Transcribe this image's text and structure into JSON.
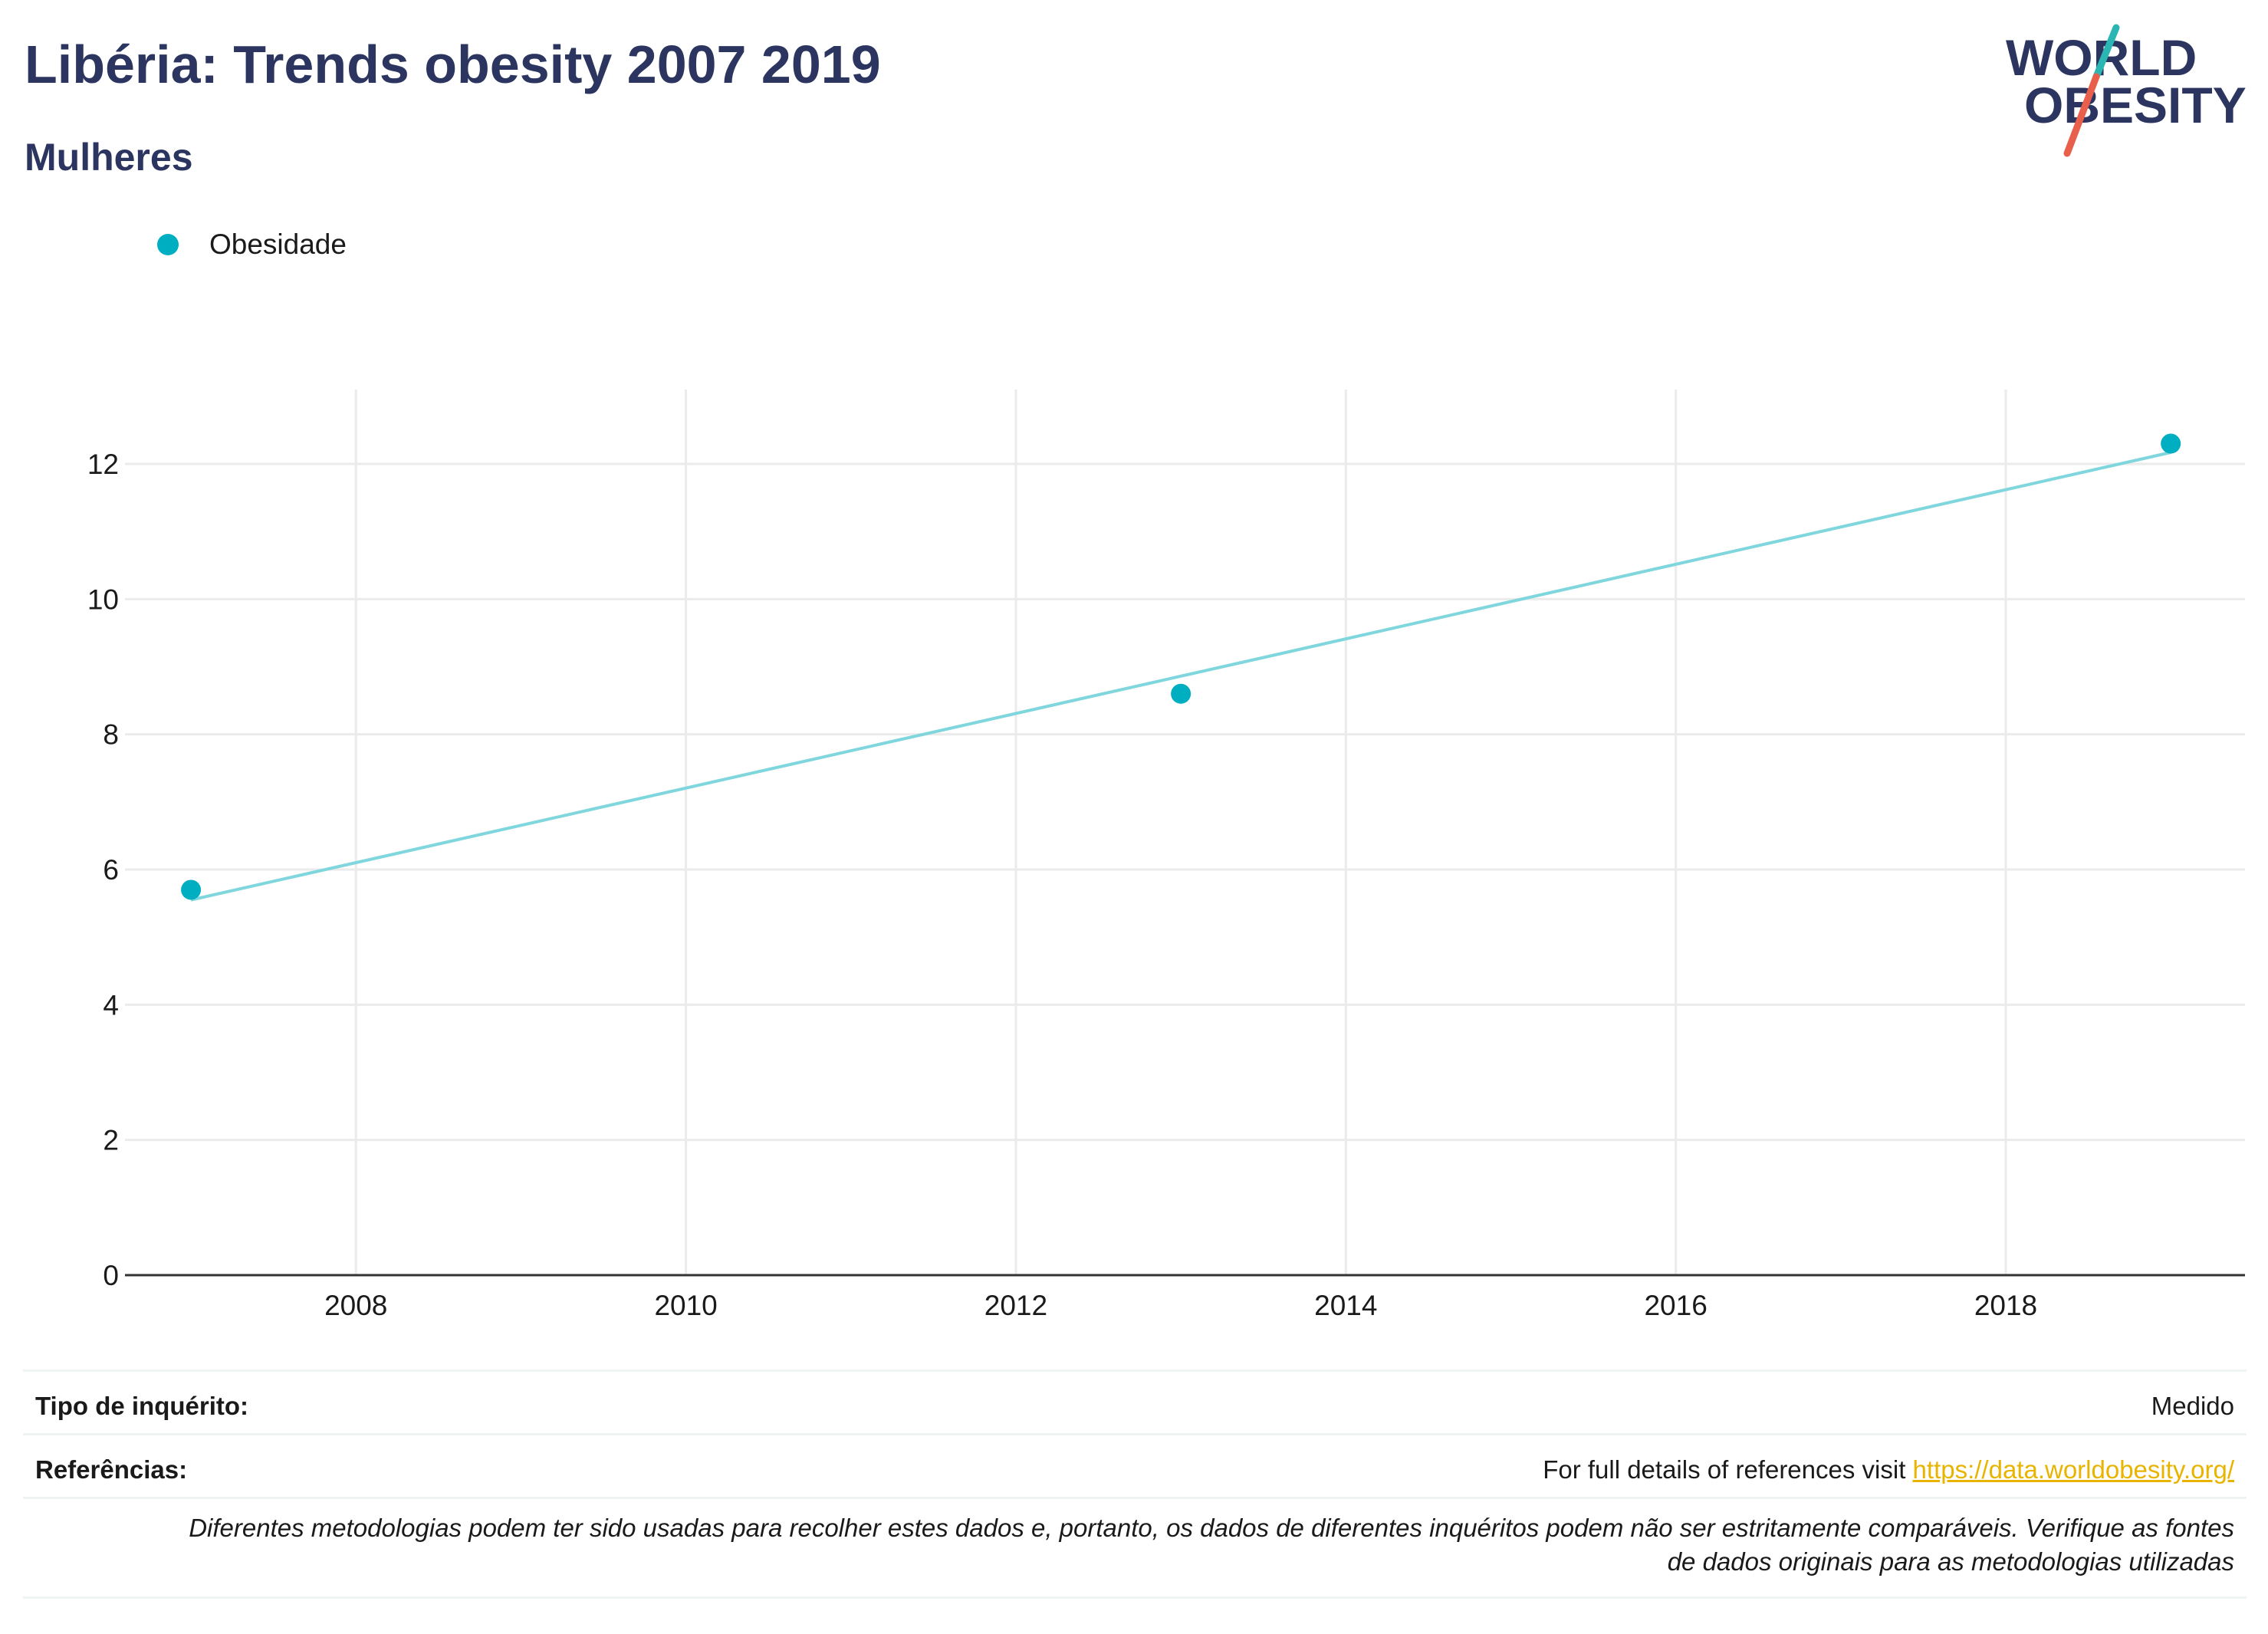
{
  "header": {
    "title": "Libéria: Trends obesity 2007 2019",
    "subtitle": "Mulheres"
  },
  "logo": {
    "line1": "WORLD",
    "line2": "OBESITY",
    "colors": {
      "text": "#2b3560",
      "slash_top": "#2bb6b4",
      "slash_bottom": "#e8604c"
    }
  },
  "colors": {
    "series": "#00aec1",
    "trend": "#7fd6dd",
    "grid": "#ebebeb",
    "axis": "#333333",
    "title": "#2b3560",
    "link": "#e8b400"
  },
  "chart_data": {
    "type": "scatter",
    "title": "Libéria: Trends obesity 2007 2019",
    "subtitle": "Mulheres",
    "xlabel": "",
    "ylabel": "",
    "xlim": [
      2006.6,
      2019.45
    ],
    "ylim": [
      0,
      13.1
    ],
    "x_ticks": [
      2008,
      2010,
      2012,
      2014,
      2016,
      2018
    ],
    "y_ticks": [
      0,
      2,
      4,
      6,
      8,
      10,
      12
    ],
    "grid": true,
    "legend_position": "top-left",
    "series": [
      {
        "name": "Obesidade",
        "x": [
          2007,
          2013,
          2019
        ],
        "y": [
          5.7,
          8.6,
          12.3
        ]
      }
    ],
    "trendline": {
      "x": [
        2007,
        2019
      ],
      "y": [
        5.55,
        12.17
      ]
    }
  },
  "info": {
    "survey_type_label": "Tipo de inquérito:",
    "survey_type_value": "Medido",
    "references_label": "Referências:",
    "references_text": "For full details of references visit ",
    "references_link": "https://data.worldobesity.org/",
    "note_line1": "Diferentes metodologias podem ter sido usadas para recolher estes dados e, portanto, os dados de diferentes inquéritos podem não ser estritamente comparáveis. Verifique as fontes",
    "note_line2": "de dados originais para as metodologias utilizadas"
  }
}
